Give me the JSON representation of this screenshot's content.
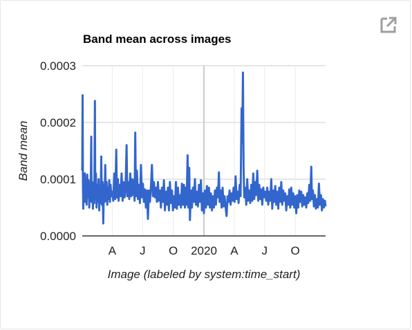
{
  "popout": {
    "icon": "external-link-icon"
  },
  "chart_data": {
    "type": "line",
    "title": "Band mean across images",
    "xlabel": "Image (labeled by system:time_start)",
    "ylabel": "Band mean",
    "x_ticks": [
      "A",
      "J",
      "O",
      "2020",
      "A",
      "J",
      "O"
    ],
    "x_tick_dates": [
      "2019-04-01",
      "2019-07-01",
      "2019-10-01",
      "2020-01-01",
      "2020-04-01",
      "2020-07-01",
      "2020-10-01"
    ],
    "x_range": [
      "2019-01-01",
      "2020-12-31"
    ],
    "y_ticks": [
      "0.0000",
      "0.0001",
      "0.0002",
      "0.0003"
    ],
    "y_tick_values": [
      0,
      0.0001,
      0.0002,
      0.0003
    ],
    "ylim": [
      0,
      0.0003
    ],
    "grid": true,
    "legend": "none",
    "series": [
      {
        "color": "#3366cc",
        "points": [
          [
            "2019-01-01",
            0.000115
          ],
          [
            "2019-01-02",
            0.000248
          ],
          [
            "2019-01-03",
            9.5e-05
          ],
          [
            "2019-01-04",
            4.8e-05
          ],
          [
            "2019-01-06",
            0.00011
          ],
          [
            "2019-01-08",
            6e-05
          ],
          [
            "2019-01-09",
            0.00011
          ],
          [
            "2019-01-11",
            6.4e-05
          ],
          [
            "2019-01-12",
            0.0001
          ],
          [
            "2019-01-14",
            5.5e-05
          ],
          [
            "2019-01-16",
            0.000108
          ],
          [
            "2019-01-18",
            6.8e-05
          ],
          [
            "2019-01-20",
            9.8e-05
          ],
          [
            "2019-01-22",
            5e-05
          ],
          [
            "2019-01-24",
            9e-05
          ],
          [
            "2019-01-26",
            6.2e-05
          ],
          [
            "2019-01-28",
            0.000175
          ],
          [
            "2019-01-29",
            6e-05
          ],
          [
            "2019-01-31",
            9.5e-05
          ],
          [
            "2019-02-02",
            4.8e-05
          ],
          [
            "2019-02-04",
            8.8e-05
          ],
          [
            "2019-02-06",
            5.8e-05
          ],
          [
            "2019-02-08",
            0.000238
          ],
          [
            "2019-02-09",
            6.5e-05
          ],
          [
            "2019-02-11",
            0.00011
          ],
          [
            "2019-02-13",
            5e-05
          ],
          [
            "2019-02-15",
            9e-05
          ],
          [
            "2019-02-17",
            6e-05
          ],
          [
            "2019-02-19",
            0.0001
          ],
          [
            "2019-02-21",
            4.5e-05
          ],
          [
            "2019-02-23",
            8.5e-05
          ],
          [
            "2019-02-25",
            5.8e-05
          ],
          [
            "2019-02-27",
            0.00014
          ],
          [
            "2019-03-01",
            5.5e-05
          ],
          [
            "2019-03-03",
            9.5e-05
          ],
          [
            "2019-03-05",
            2.2e-05
          ],
          [
            "2019-03-07",
            9e-05
          ],
          [
            "2019-03-09",
            6e-05
          ],
          [
            "2019-03-11",
            0.000125
          ],
          [
            "2019-03-13",
            6.2e-05
          ],
          [
            "2019-03-15",
            9.5e-05
          ],
          [
            "2019-03-17",
            5.5e-05
          ],
          [
            "2019-03-19",
            8.5e-05
          ],
          [
            "2019-03-21",
            6.5e-05
          ],
          [
            "2019-03-23",
            9.8e-05
          ],
          [
            "2019-03-25",
            6e-05
          ],
          [
            "2019-03-27",
            9e-05
          ],
          [
            "2019-03-29",
            7e-05
          ],
          [
            "2019-04-01",
            7.8e-05
          ],
          [
            "2019-04-04",
            6.2e-05
          ],
          [
            "2019-04-07",
            0.00011
          ],
          [
            "2019-04-10",
            6.5e-05
          ],
          [
            "2019-04-13",
            0.000152
          ],
          [
            "2019-04-15",
            6.8e-05
          ],
          [
            "2019-04-18",
            0.0001
          ],
          [
            "2019-04-20",
            6.2e-05
          ],
          [
            "2019-04-23",
            9e-05
          ],
          [
            "2019-04-26",
            7e-05
          ],
          [
            "2019-04-29",
            0.00011
          ],
          [
            "2019-05-02",
            6.2e-05
          ],
          [
            "2019-05-05",
            9.5e-05
          ],
          [
            "2019-05-08",
            6.8e-05
          ],
          [
            "2019-05-11",
            8.5e-05
          ],
          [
            "2019-05-14",
            0.00016
          ],
          [
            "2019-05-16",
            7e-05
          ],
          [
            "2019-05-19",
            9.5e-05
          ],
          [
            "2019-05-22",
            6.5e-05
          ],
          [
            "2019-05-25",
            0.00011
          ],
          [
            "2019-05-28",
            7e-05
          ],
          [
            "2019-05-31",
            0.0001
          ],
          [
            "2019-06-03",
            7.2e-05
          ],
          [
            "2019-06-05",
            9.8e-05
          ],
          [
            "2019-06-07",
            6.2e-05
          ],
          [
            "2019-06-09",
            0.000182
          ],
          [
            "2019-06-11",
            7e-05
          ],
          [
            "2019-06-14",
            0.000115
          ],
          [
            "2019-06-17",
            6.5e-05
          ],
          [
            "2019-06-20",
            9e-05
          ],
          [
            "2019-06-23",
            5.8e-05
          ],
          [
            "2019-06-26",
            0.000125
          ],
          [
            "2019-06-29",
            6.8e-05
          ],
          [
            "2019-07-02",
            9.2e-05
          ],
          [
            "2019-07-05",
            6e-05
          ],
          [
            "2019-07-08",
            8.2e-05
          ],
          [
            "2019-07-11",
            5e-05
          ],
          [
            "2019-07-14",
            8e-05
          ],
          [
            "2019-07-17",
            3e-05
          ],
          [
            "2019-07-20",
            8e-05
          ],
          [
            "2019-07-23",
            6e-05
          ],
          [
            "2019-07-26",
            8.5e-05
          ],
          [
            "2019-07-29",
            0.000125
          ],
          [
            "2019-08-01",
            7e-05
          ],
          [
            "2019-08-04",
            9.5e-05
          ],
          [
            "2019-08-07",
            6.8e-05
          ],
          [
            "2019-08-10",
            8.5e-05
          ],
          [
            "2019-08-13",
            6e-05
          ],
          [
            "2019-08-16",
            9.5e-05
          ],
          [
            "2019-08-19",
            6.2e-05
          ],
          [
            "2019-08-22",
            8e-05
          ],
          [
            "2019-08-25",
            5e-05
          ],
          [
            "2019-08-28",
            8.5e-05
          ],
          [
            "2019-08-31",
            6e-05
          ],
          [
            "2019-09-03",
            9.8e-05
          ],
          [
            "2019-09-06",
            4.5e-05
          ],
          [
            "2019-09-09",
            7.8e-05
          ],
          [
            "2019-09-12",
            5.5e-05
          ],
          [
            "2019-09-15",
            8.5e-05
          ],
          [
            "2019-09-18",
            4.5e-05
          ],
          [
            "2019-09-21",
            9.5e-05
          ],
          [
            "2019-09-24",
            5.8e-05
          ],
          [
            "2019-09-27",
            8e-05
          ],
          [
            "2019-09-30",
            4.5e-05
          ],
          [
            "2019-10-03",
            7e-05
          ],
          [
            "2019-10-06",
            5e-05
          ],
          [
            "2019-10-09",
            9.5e-05
          ],
          [
            "2019-10-12",
            4.8e-05
          ],
          [
            "2019-10-15",
            8.5e-05
          ],
          [
            "2019-10-18",
            5.5e-05
          ],
          [
            "2019-10-21",
            7.2e-05
          ],
          [
            "2019-10-24",
            5e-05
          ],
          [
            "2019-10-27",
            9.2e-05
          ],
          [
            "2019-10-30",
            5.5e-05
          ],
          [
            "2019-11-02",
            9e-05
          ],
          [
            "2019-11-05",
            5e-05
          ],
          [
            "2019-11-07",
            8.5e-05
          ],
          [
            "2019-11-10",
            5.5e-05
          ],
          [
            "2019-11-13",
            0.000142
          ],
          [
            "2019-11-15",
            5e-05
          ],
          [
            "2019-11-18",
            0.00012
          ],
          [
            "2019-11-20",
            2.8e-05
          ],
          [
            "2019-11-23",
            8e-05
          ],
          [
            "2019-11-26",
            5e-05
          ],
          [
            "2019-11-29",
            8.5e-05
          ],
          [
            "2019-12-02",
            6e-05
          ],
          [
            "2019-12-05",
            0.0001
          ],
          [
            "2019-12-08",
            5.5e-05
          ],
          [
            "2019-12-11",
            7.8e-05
          ],
          [
            "2019-12-14",
            5.2e-05
          ],
          [
            "2019-12-17",
            9e-05
          ],
          [
            "2019-12-20",
            6e-05
          ],
          [
            "2019-12-23",
            9.8e-05
          ],
          [
            "2019-12-26",
            4.5e-05
          ],
          [
            "2019-12-29",
            7.5e-05
          ],
          [
            "2020-01-01",
            4e-05
          ],
          [
            "2020-01-04",
            8e-05
          ],
          [
            "2020-01-07",
            5e-05
          ],
          [
            "2020-01-10",
            8.8e-05
          ],
          [
            "2020-01-13",
            5.5e-05
          ],
          [
            "2020-01-16",
            8.5e-05
          ],
          [
            "2020-01-19",
            5e-05
          ],
          [
            "2020-01-22",
            7.5e-05
          ],
          [
            "2020-01-25",
            4.5e-05
          ],
          [
            "2020-01-28",
            7e-05
          ],
          [
            "2020-01-31",
            5e-05
          ],
          [
            "2020-02-03",
            8e-05
          ],
          [
            "2020-02-06",
            5.5e-05
          ],
          [
            "2020-02-09",
            8.5e-05
          ],
          [
            "2020-02-12",
            6.8e-05
          ],
          [
            "2020-02-15",
            0.000112
          ],
          [
            "2020-02-17",
            6e-05
          ],
          [
            "2020-02-20",
            8e-05
          ],
          [
            "2020-02-23",
            5e-05
          ],
          [
            "2020-02-26",
            8.5e-05
          ],
          [
            "2020-02-29",
            5.2e-05
          ],
          [
            "2020-03-03",
            7e-05
          ],
          [
            "2020-03-06",
            5e-05
          ],
          [
            "2020-03-09",
            3.5e-05
          ],
          [
            "2020-03-12",
            7e-05
          ],
          [
            "2020-03-15",
            6e-05
          ],
          [
            "2020-03-18",
            8e-05
          ],
          [
            "2020-03-21",
            5.5e-05
          ],
          [
            "2020-03-24",
            7.5e-05
          ],
          [
            "2020-03-27",
            6.2e-05
          ],
          [
            "2020-03-30",
            8.5e-05
          ],
          [
            "2020-04-02",
            6e-05
          ],
          [
            "2020-04-05",
            0.000105
          ],
          [
            "2020-04-08",
            6.5e-05
          ],
          [
            "2020-04-11",
            7.8e-05
          ],
          [
            "2020-04-14",
            5.8e-05
          ],
          [
            "2020-04-17",
            9e-05
          ],
          [
            "2020-04-20",
            7e-05
          ],
          [
            "2020-04-23",
            0.000225
          ],
          [
            "2020-04-25",
            0.000165
          ],
          [
            "2020-04-27",
            0.000288
          ],
          [
            "2020-04-29",
            0.00012
          ],
          [
            "2020-05-01",
            6.8e-05
          ],
          [
            "2020-05-04",
            8.5e-05
          ],
          [
            "2020-05-07",
            5.5e-05
          ],
          [
            "2020-05-10",
            0.0001
          ],
          [
            "2020-05-13",
            6.2e-05
          ],
          [
            "2020-05-16",
            8e-05
          ],
          [
            "2020-05-19",
            5.8e-05
          ],
          [
            "2020-05-22",
            9e-05
          ],
          [
            "2020-05-25",
            6.2e-05
          ],
          [
            "2020-05-28",
            0.00011
          ],
          [
            "2020-05-31",
            6.5e-05
          ],
          [
            "2020-06-03",
            9.5e-05
          ],
          [
            "2020-06-06",
            7.2e-05
          ],
          [
            "2020-06-09",
            0.000115
          ],
          [
            "2020-06-12",
            6.2e-05
          ],
          [
            "2020-06-15",
            9e-05
          ],
          [
            "2020-06-18",
            6.5e-05
          ],
          [
            "2020-06-21",
            8.2e-05
          ],
          [
            "2020-06-24",
            5.5e-05
          ],
          [
            "2020-06-27",
            8.5e-05
          ],
          [
            "2020-06-30",
            6.8e-05
          ],
          [
            "2020-07-03",
            7.8e-05
          ],
          [
            "2020-07-06",
            6.2e-05
          ],
          [
            "2020-07-09",
            8.5e-05
          ],
          [
            "2020-07-12",
            5.5e-05
          ],
          [
            "2020-07-15",
            7.8e-05
          ],
          [
            "2020-07-18",
            6.2e-05
          ],
          [
            "2020-07-21",
            0.0001
          ],
          [
            "2020-07-24",
            4.8e-05
          ],
          [
            "2020-07-27",
            8e-05
          ],
          [
            "2020-07-30",
            6e-05
          ],
          [
            "2020-08-02",
            8.8e-05
          ],
          [
            "2020-08-05",
            5.5e-05
          ],
          [
            "2020-08-08",
            7.8e-05
          ],
          [
            "2020-08-11",
            4.8e-05
          ],
          [
            "2020-08-14",
            8.5e-05
          ],
          [
            "2020-08-17",
            6e-05
          ],
          [
            "2020-08-20",
            9.5e-05
          ],
          [
            "2020-08-23",
            5.5e-05
          ],
          [
            "2020-08-26",
            8e-05
          ],
          [
            "2020-08-29",
            6.2e-05
          ],
          [
            "2020-09-01",
            7.5e-05
          ],
          [
            "2020-09-04",
            4.5e-05
          ],
          [
            "2020-09-07",
            7e-05
          ],
          [
            "2020-09-10",
            5.5e-05
          ],
          [
            "2020-09-13",
            8.2e-05
          ],
          [
            "2020-09-16",
            5e-05
          ],
          [
            "2020-09-19",
            8.5e-05
          ],
          [
            "2020-09-22",
            5.5e-05
          ],
          [
            "2020-09-25",
            7.5e-05
          ],
          [
            "2020-09-28",
            5e-05
          ],
          [
            "2020-10-01",
            7e-05
          ],
          [
            "2020-10-04",
            4e-05
          ],
          [
            "2020-10-07",
            7.2e-05
          ],
          [
            "2020-10-10",
            5e-05
          ],
          [
            "2020-10-13",
            8e-05
          ],
          [
            "2020-10-16",
            6e-05
          ],
          [
            "2020-10-19",
            7.8e-05
          ],
          [
            "2020-10-22",
            5.2e-05
          ],
          [
            "2020-10-25",
            7.2e-05
          ],
          [
            "2020-10-28",
            5.5e-05
          ],
          [
            "2020-10-31",
            6.8e-05
          ],
          [
            "2020-11-03",
            5e-05
          ],
          [
            "2020-11-06",
            7.5e-05
          ],
          [
            "2020-11-09",
            5.8e-05
          ],
          [
            "2020-11-12",
            9e-05
          ],
          [
            "2020-11-15",
            6.2e-05
          ],
          [
            "2020-11-18",
            0.000122
          ],
          [
            "2020-11-20",
            6.5e-05
          ],
          [
            "2020-11-23",
            8e-05
          ],
          [
            "2020-11-26",
            5.2e-05
          ],
          [
            "2020-11-29",
            7.2e-05
          ],
          [
            "2020-12-02",
            4.8e-05
          ],
          [
            "2020-12-05",
            6.5e-05
          ],
          [
            "2020-12-08",
            5e-05
          ],
          [
            "2020-12-11",
            9.2e-05
          ],
          [
            "2020-12-14",
            5.5e-05
          ],
          [
            "2020-12-17",
            7.2e-05
          ],
          [
            "2020-12-20",
            4.5e-05
          ],
          [
            "2020-12-23",
            6.5e-05
          ],
          [
            "2020-12-26",
            5e-05
          ],
          [
            "2020-12-29",
            6.2e-05
          ],
          [
            "2020-12-31",
            5.2e-05
          ]
        ]
      }
    ]
  }
}
